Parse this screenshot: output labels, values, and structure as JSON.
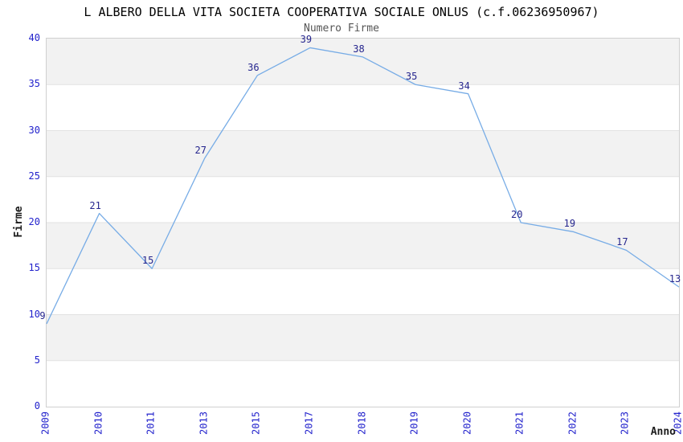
{
  "title": "L ALBERO DELLA VITA SOCIETA COOPERATIVA SOCIALE ONLUS (c.f.06236950967)",
  "chart_data": {
    "type": "line",
    "title": "L ALBERO DELLA VITA SOCIETA COOPERATIVA SOCIALE ONLUS (c.f.06236950967)",
    "subtitle": "Numero Firme",
    "xlabel": "Anno",
    "ylabel": "Firme",
    "categories": [
      "2009",
      "2010",
      "2011",
      "2013",
      "2015",
      "2017",
      "2018",
      "2019",
      "2020",
      "2021",
      "2022",
      "2023",
      "2024"
    ],
    "values": [
      9,
      21,
      15,
      27,
      36,
      39,
      38,
      35,
      34,
      20,
      19,
      17,
      13
    ],
    "ylim": [
      0,
      40
    ],
    "ytick_step": 5,
    "yticks": [
      0,
      5,
      10,
      15,
      20,
      25,
      30,
      35,
      40
    ],
    "grid": true,
    "legend_position": "none",
    "point_labels_visible": true,
    "colors": {
      "line": "#77ace6",
      "tick_label": "#2222cc",
      "point_label": "#26268e",
      "band": "#f2f2f2",
      "band_alt": "#ffffff",
      "grid": "#e2e2e2",
      "border": "#d0d0d0",
      "title": "#000000",
      "subtitle": "#555555",
      "axis_label": "#1c1c1c"
    }
  }
}
